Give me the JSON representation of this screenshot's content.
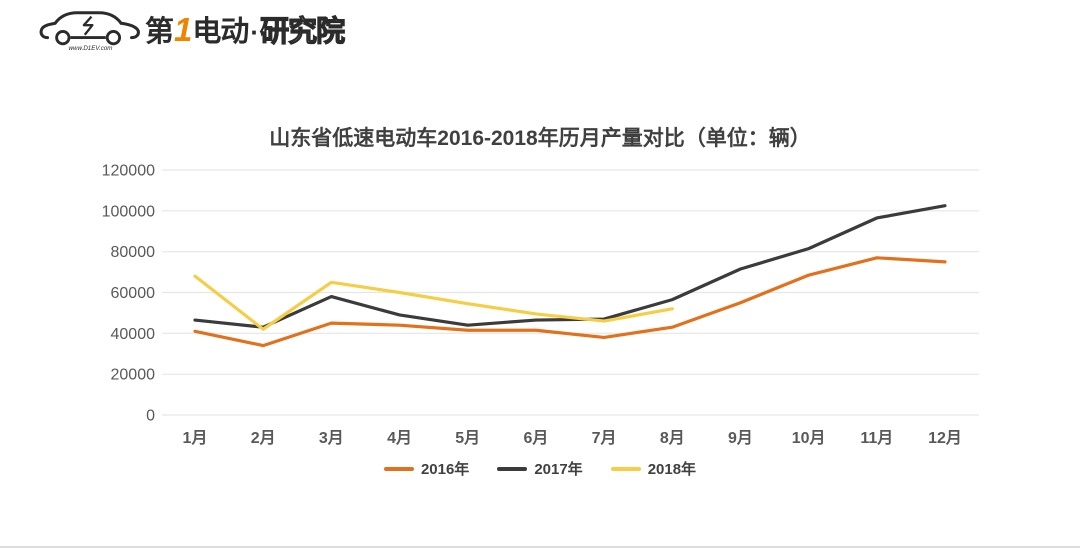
{
  "logo": {
    "brand_prefix": "第",
    "brand_one": "1",
    "brand_suffix": "电动",
    "brand_dot": "·",
    "brand_institute": "研究院",
    "website": "www.D1EV.com",
    "accent_color": "#F08300",
    "ink_color": "#2B2B2B"
  },
  "colors": {
    "grid": "#E6E6E6",
    "axis_text": "#595959",
    "title_text": "#404040"
  },
  "chart_data": {
    "type": "line",
    "title": "山东省低速电动车2016-2018年历月产量对比（单位：辆）",
    "categories": [
      "1月",
      "2月",
      "3月",
      "4月",
      "5月",
      "6月",
      "7月",
      "8月",
      "9月",
      "10月",
      "11月",
      "12月"
    ],
    "series": [
      {
        "name": "2016年",
        "color": "#E2711D",
        "values": [
          41000,
          34000,
          45000,
          44000,
          41500,
          41500,
          38000,
          43000,
          55000,
          68500,
          77000,
          75000
        ]
      },
      {
        "name": "2017年",
        "color": "#3B3B3B",
        "values": [
          46500,
          43000,
          58000,
          49000,
          44000,
          46500,
          47000,
          56500,
          71500,
          81500,
          96500,
          102500
        ]
      },
      {
        "name": "2018年",
        "color": "#F5CE46",
        "values": [
          68000,
          42000,
          65000,
          60000,
          54500,
          49500,
          46000,
          52000
        ]
      }
    ],
    "xlabel": "",
    "ylabel": "",
    "ylim": [
      0,
      120000
    ],
    "y_ticks": [
      0,
      20000,
      40000,
      60000,
      80000,
      100000,
      120000
    ],
    "grid": true,
    "legend_position": "bottom"
  }
}
